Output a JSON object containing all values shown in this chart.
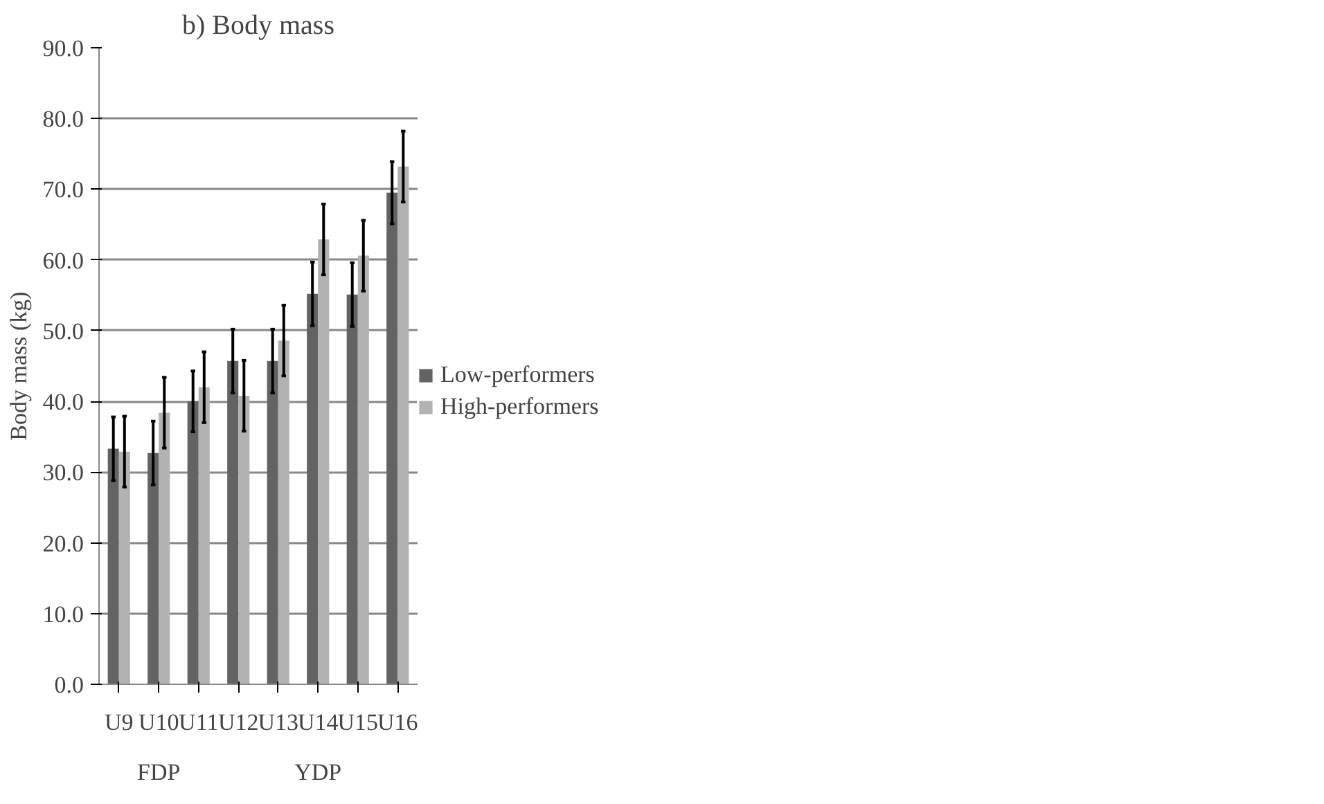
{
  "chart_data": {
    "type": "bar",
    "title": "b) Body mass",
    "ylabel": "Body mass (kg)",
    "categories": [
      "U9",
      "U10",
      "U11",
      "U12",
      "U13",
      "U14",
      "U15",
      "U16"
    ],
    "series": [
      {
        "name": "Low-performers",
        "color": "#636363",
        "values": [
          33.3,
          32.7,
          40.0,
          45.7,
          45.7,
          55.2,
          55.1,
          69.5
        ],
        "errors": [
          4.5,
          4.5,
          4.3,
          4.5,
          4.5,
          4.5,
          4.5,
          4.4
        ]
      },
      {
        "name": "High-performers",
        "color": "#b2b2b2",
        "values": [
          32.9,
          38.4,
          42.0,
          40.8,
          48.6,
          62.9,
          60.6,
          73.2
        ],
        "errors": [
          5.0,
          5.0,
          5.0,
          5.0,
          5.0,
          5.0,
          5.0,
          5.0
        ]
      }
    ],
    "annotations": [
      "FDP",
      "YDP"
    ],
    "ylim": [
      0,
      90
    ],
    "yticks": [
      {
        "value": 0,
        "label": "0.0"
      },
      {
        "value": 10,
        "label": "10.0"
      },
      {
        "value": 20,
        "label": "20.0"
      },
      {
        "value": 30,
        "label": "30.0"
      },
      {
        "value": 40,
        "label": "40.0"
      },
      {
        "value": 50,
        "label": "50.0"
      },
      {
        "value": 60,
        "label": "60.0"
      },
      {
        "value": 70,
        "label": "70.0"
      },
      {
        "value": 80,
        "label": "80.0"
      },
      {
        "value": 90,
        "label": "90.0"
      }
    ],
    "grid": "y",
    "legend": "right"
  }
}
